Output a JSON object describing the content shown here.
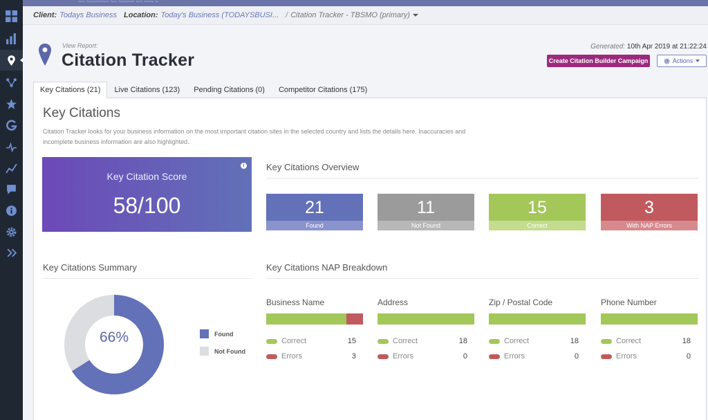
{
  "topbar": {
    "cut_text": "~~ ~~~~~~~ ~~ ~~~~~ ~~ ~~~ ~"
  },
  "breadcrumb": {
    "client_label": "Client:",
    "client_value": "Todays Business",
    "location_label": "Location:",
    "location_value": "Today's Business (TODAYSBUSI...",
    "separator": "/",
    "current": "Citation Tracker - TBSMO (primary)"
  },
  "header": {
    "view_report": "View Report:",
    "title": "Citation Tracker",
    "generated_label": "Generated:",
    "generated_value": "10th Apr 2019 at 21:22:24",
    "create_button": "Create Citation Builder Campaign",
    "actions_button": "Actions"
  },
  "tabs": [
    {
      "label": "Key Citations (21)"
    },
    {
      "label": "Live Citations (123)"
    },
    {
      "label": "Pending Citations (0)"
    },
    {
      "label": "Competitor Citations (175)"
    }
  ],
  "section": {
    "title": "Key Citations",
    "description": "Citation Tracker looks for your business information on the most important citation sites in the selected country and lists the details here. Inaccuracies and incomplete business information are also highlighted."
  },
  "score": {
    "label": "Key Citation Score",
    "value": "58/100",
    "info_icon": "i"
  },
  "overview": {
    "title": "Key Citations Overview",
    "tiles": [
      {
        "value": "21",
        "label": "Found",
        "color": "#6271b8",
        "cap_color": "#8a93cc"
      },
      {
        "value": "11",
        "label": "Not Found",
        "color": "#9b9b9b",
        "cap_color": "#b8b8b8"
      },
      {
        "value": "15",
        "label": "Correct",
        "color": "#a4c75a",
        "cap_color": "#c4dc8e"
      },
      {
        "value": "3",
        "label": "With NAP Errors",
        "color": "#c05a5e",
        "cap_color": "#d68a8d"
      }
    ]
  },
  "summary": {
    "title": "Key Citations Summary",
    "percent": "66%",
    "found_fraction": 0.66,
    "legend": [
      {
        "label": "Found",
        "color": "#6271b8"
      },
      {
        "label": "Not Found",
        "color": "#dcdde0"
      }
    ]
  },
  "nap": {
    "title": "Key Citations NAP Breakdown",
    "correct_label": "Correct",
    "errors_label": "Errors",
    "items": [
      {
        "title": "Business Name",
        "correct": "15",
        "errors": "3",
        "error_fraction": 0.17
      },
      {
        "title": "Address",
        "correct": "18",
        "errors": "0",
        "error_fraction": 0
      },
      {
        "title": "Zip / Postal Code",
        "correct": "18",
        "errors": "0",
        "error_fraction": 0
      },
      {
        "title": "Phone Number",
        "correct": "18",
        "errors": "0",
        "error_fraction": 0
      }
    ]
  },
  "colors": {
    "accent": "#6271b8",
    "correct": "#a4c75a",
    "error": "#c05a5e",
    "purple": "#9b2a7c"
  },
  "icons": {
    "sidebar": [
      "dashboard-icon",
      "bar-chart-icon",
      "location-pin-icon",
      "network-icon",
      "star-icon",
      "google-icon",
      "pulse-icon",
      "trend-icon",
      "chat-icon",
      "info-icon",
      "settings-icon",
      "expand-icon"
    ]
  }
}
